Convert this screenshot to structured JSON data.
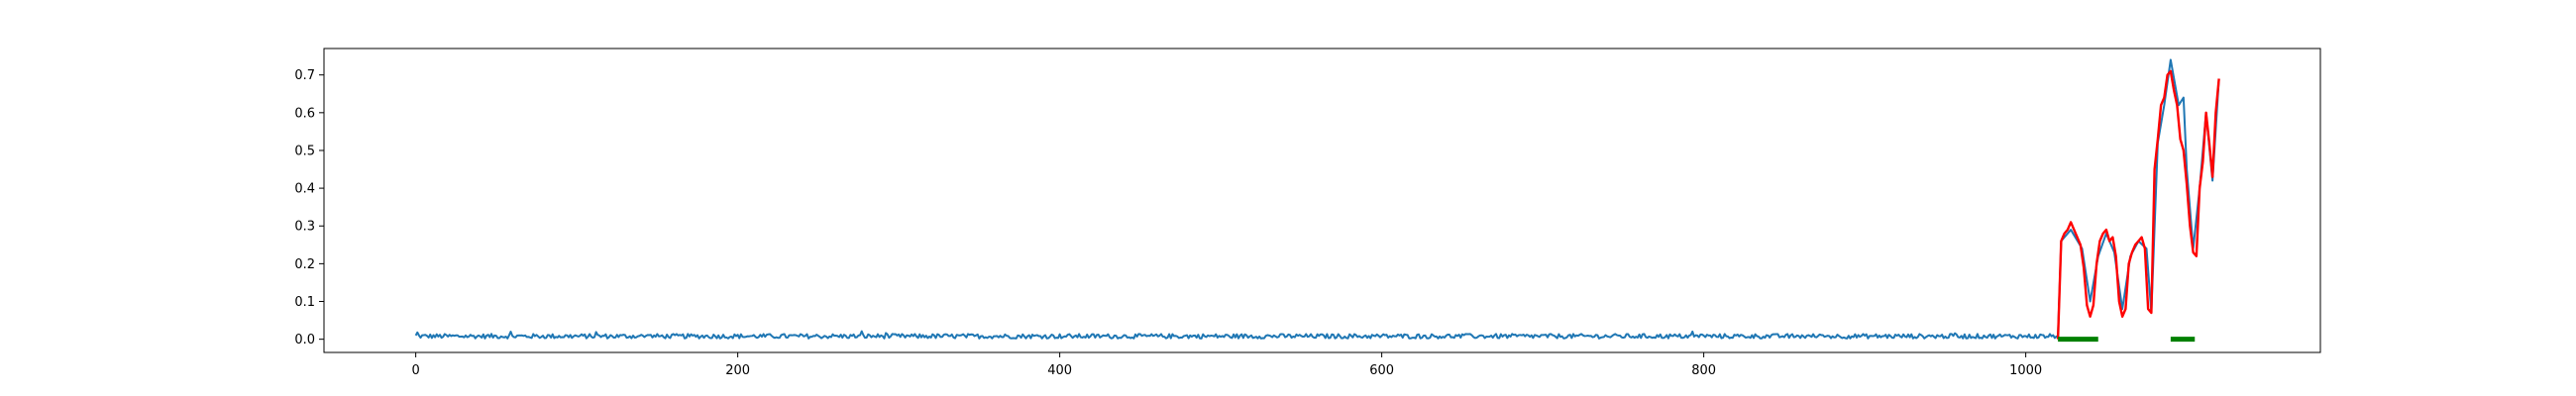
{
  "chart_data": {
    "type": "line",
    "title": "",
    "xlabel": "",
    "ylabel": "",
    "xlim": [
      -57,
      1183
    ],
    "ylim": [
      -0.035,
      0.77
    ],
    "grid": false,
    "legend": "none",
    "x_ticks": [
      0,
      200,
      400,
      600,
      800,
      1000
    ],
    "x_tick_labels": [
      "0",
      "200",
      "400",
      "600",
      "800",
      "1000"
    ],
    "y_ticks": [
      0.0,
      0.1,
      0.2,
      0.3,
      0.4,
      0.5,
      0.6,
      0.7
    ],
    "y_tick_labels": [
      "0.0",
      "0.1",
      "0.2",
      "0.3",
      "0.4",
      "0.5",
      "0.6",
      "0.7"
    ],
    "colors": {
      "series": "#1f77b4",
      "highlight": "#ff0000",
      "labels": "#008000",
      "axes": "#000000"
    },
    "series": [
      {
        "role": "signal",
        "color": "#1f77b4",
        "segments": [
          {
            "x_range": [
              0,
              1020
            ],
            "baseline": 0.008,
            "noise": 0.006
          }
        ],
        "x": [
          1020,
          1022,
          1028,
          1035,
          1040,
          1045,
          1050,
          1055,
          1060,
          1065,
          1070,
          1075,
          1078,
          1082,
          1086,
          1090,
          1095,
          1098,
          1100,
          1104,
          1108,
          1112,
          1116,
          1120
        ],
        "y": [
          0.01,
          0.26,
          0.29,
          0.24,
          0.1,
          0.22,
          0.28,
          0.23,
          0.08,
          0.22,
          0.26,
          0.24,
          0.07,
          0.52,
          0.62,
          0.74,
          0.62,
          0.64,
          0.45,
          0.24,
          0.4,
          0.6,
          0.42,
          0.69
        ]
      },
      {
        "role": "highlight",
        "color": "#ff0000",
        "x": [
          1020,
          1022,
          1024,
          1026,
          1028,
          1030,
          1032,
          1034,
          1036,
          1038,
          1040,
          1042,
          1044,
          1046,
          1048,
          1050,
          1052,
          1054,
          1056,
          1058,
          1060,
          1062,
          1064,
          1066,
          1068,
          1070,
          1072,
          1074,
          1076,
          1078,
          1080,
          1082,
          1084,
          1086,
          1088,
          1090,
          1092,
          1094,
          1096,
          1098,
          1100,
          1102,
          1104,
          1106,
          1108,
          1110,
          1112,
          1114,
          1116,
          1118,
          1120
        ],
        "y": [
          0.0,
          0.26,
          0.28,
          0.29,
          0.31,
          0.29,
          0.27,
          0.25,
          0.19,
          0.09,
          0.06,
          0.09,
          0.2,
          0.26,
          0.28,
          0.29,
          0.26,
          0.27,
          0.22,
          0.1,
          0.06,
          0.08,
          0.2,
          0.23,
          0.25,
          0.26,
          0.27,
          0.24,
          0.08,
          0.07,
          0.45,
          0.53,
          0.62,
          0.64,
          0.7,
          0.71,
          0.66,
          0.62,
          0.53,
          0.5,
          0.41,
          0.3,
          0.23,
          0.22,
          0.4,
          0.47,
          0.6,
          0.52,
          0.43,
          0.6,
          0.69
        ]
      },
      {
        "role": "labels",
        "color": "#008000",
        "segments": [
          {
            "x": [
              1020,
              1045
            ],
            "y": 0.0
          },
          {
            "x": [
              1090,
              1105
            ],
            "y": 0.0
          }
        ]
      }
    ]
  }
}
